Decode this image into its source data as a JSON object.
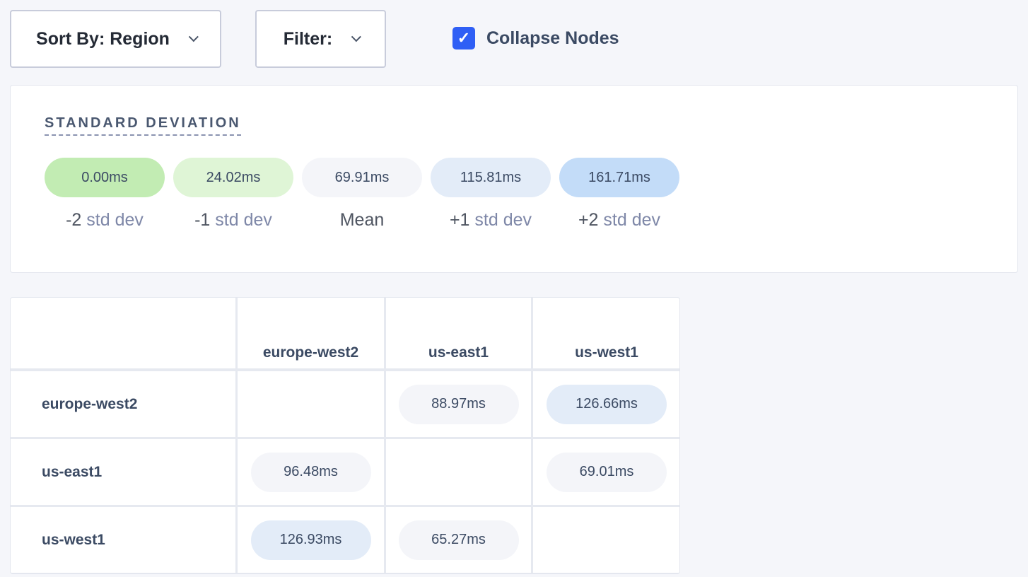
{
  "toolbar": {
    "sort_label": "Sort By: Region",
    "filter_label": "Filter:",
    "collapse_label": "Collapse Nodes",
    "collapse_checked": true
  },
  "legend": {
    "title": "STANDARD DEVIATION",
    "items": [
      {
        "value": "0.00ms",
        "prefix": "-2",
        "label": "std dev",
        "color": "#c2ecb3"
      },
      {
        "value": "24.02ms",
        "prefix": "-1",
        "label": "std dev",
        "color": "#dff5d6"
      },
      {
        "value": "69.91ms",
        "prefix": "Mean",
        "label": "",
        "color": "#f4f5f9"
      },
      {
        "value": "115.81ms",
        "prefix": "+1",
        "label": "std dev",
        "color": "#e3ecf8"
      },
      {
        "value": "161.71ms",
        "prefix": "+2",
        "label": "std dev",
        "color": "#c3dcf8"
      }
    ]
  },
  "matrix": {
    "columns": [
      "europe-west2",
      "us-east1",
      "us-west1"
    ],
    "rows": [
      {
        "label": "europe-west2",
        "cells": [
          "",
          "88.97ms",
          "126.66ms"
        ],
        "colors": [
          "",
          "#f4f5f9",
          "#e3ecf8"
        ]
      },
      {
        "label": "us-east1",
        "cells": [
          "96.48ms",
          "",
          "69.01ms"
        ],
        "colors": [
          "#f4f5f9",
          "",
          "#f4f5f9"
        ]
      },
      {
        "label": "us-west1",
        "cells": [
          "126.93ms",
          "65.27ms",
          ""
        ],
        "colors": [
          "#e3ecf8",
          "#f4f5f9",
          ""
        ]
      }
    ]
  }
}
